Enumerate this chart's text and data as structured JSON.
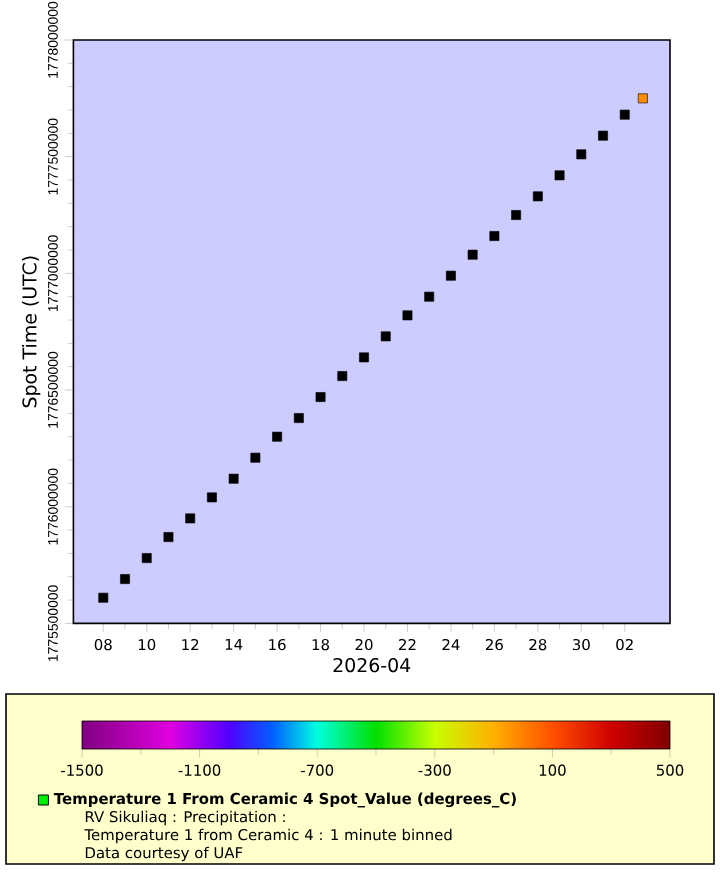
{
  "chart_data": {
    "type": "scatter",
    "xlabel": "2026-04",
    "ylabel": "Spot Time (UTC)",
    "xlim": [
      "2026-04-06T15:00",
      "2026-05-04T02:00"
    ],
    "xticks": [
      {
        "value": "2026-04-08",
        "label": "08"
      },
      {
        "value": "2026-04-10",
        "label": "10"
      },
      {
        "value": "2026-04-12",
        "label": "12"
      },
      {
        "value": "2026-04-14",
        "label": "14"
      },
      {
        "value": "2026-04-16",
        "label": "16"
      },
      {
        "value": "2026-04-18",
        "label": "18"
      },
      {
        "value": "2026-04-20",
        "label": "20"
      },
      {
        "value": "2026-04-22",
        "label": "22"
      },
      {
        "value": "2026-04-24",
        "label": "24"
      },
      {
        "value": "2026-04-26",
        "label": "26"
      },
      {
        "value": "2026-04-28",
        "label": "28"
      },
      {
        "value": "2026-04-30",
        "label": "30"
      },
      {
        "value": "2026-05-02",
        "label": "02"
      }
    ],
    "ylim": [
      1775500000,
      1778000000
    ],
    "yticks": [
      1775500000,
      1776000000,
      1776500000,
      1777000000,
      1777500000,
      1778000000
    ],
    "marker": "square",
    "legend": "bottom",
    "clim": [
      -1500,
      500
    ],
    "cticks": [
      -1500,
      -1100,
      -700,
      -300,
      100,
      500
    ],
    "series": [
      {
        "name": "Temperature 1 From Ceramic 4 Spot_Value (degrees_C)",
        "color": "#00ee00",
        "x": [
          "2026-04-08T00:00",
          "2026-04-09T00:00",
          "2026-04-10T00:00",
          "2026-04-11T00:00",
          "2026-04-12T00:00",
          "2026-04-13T00:00",
          "2026-04-14T00:00",
          "2026-04-15T00:00",
          "2026-04-16T00:00",
          "2026-04-17T00:00",
          "2026-04-18T00:00",
          "2026-04-19T00:00",
          "2026-04-20T00:00",
          "2026-04-21T00:00",
          "2026-04-22T00:00",
          "2026-04-23T00:00",
          "2026-04-24T00:00",
          "2026-04-25T00:00",
          "2026-04-26T00:00",
          "2026-04-27T00:00",
          "2026-04-28T00:00",
          "2026-04-29T00:00",
          "2026-04-30T00:00",
          "2026-05-01T00:00",
          "2026-05-02T00:00",
          "2026-05-02T20:00"
        ],
        "values": [
          1775610000,
          1775690000,
          1775780000,
          1775870000,
          1775950000,
          1776040000,
          1776120000,
          1776210000,
          1776300000,
          1776380000,
          1776470000,
          1776560000,
          1776640000,
          1776730000,
          1776820000,
          1776900000,
          1776990000,
          1777080000,
          1777160000,
          1777250000,
          1777330000,
          1777420000,
          1777510000,
          1777590000,
          1777680000,
          1777750000
        ],
        "colors": [
          "#000000",
          "#000000",
          "#000000",
          "#000000",
          "#000000",
          "#000000",
          "#000000",
          "#000000",
          "#000000",
          "#000000",
          "#000000",
          "#000000",
          "#000000",
          "#000000",
          "#000000",
          "#000000",
          "#000000",
          "#000000",
          "#000000",
          "#000000",
          "#000000",
          "#000000",
          "#000000",
          "#000000",
          "#000000",
          "#ff8c00"
        ]
      }
    ],
    "annotations": [
      "RV Sikuliaq : Precipitation :",
      "Temperature 1 from Ceramic 4 : 1 minute binned",
      "Data courtesy of UAF"
    ]
  }
}
